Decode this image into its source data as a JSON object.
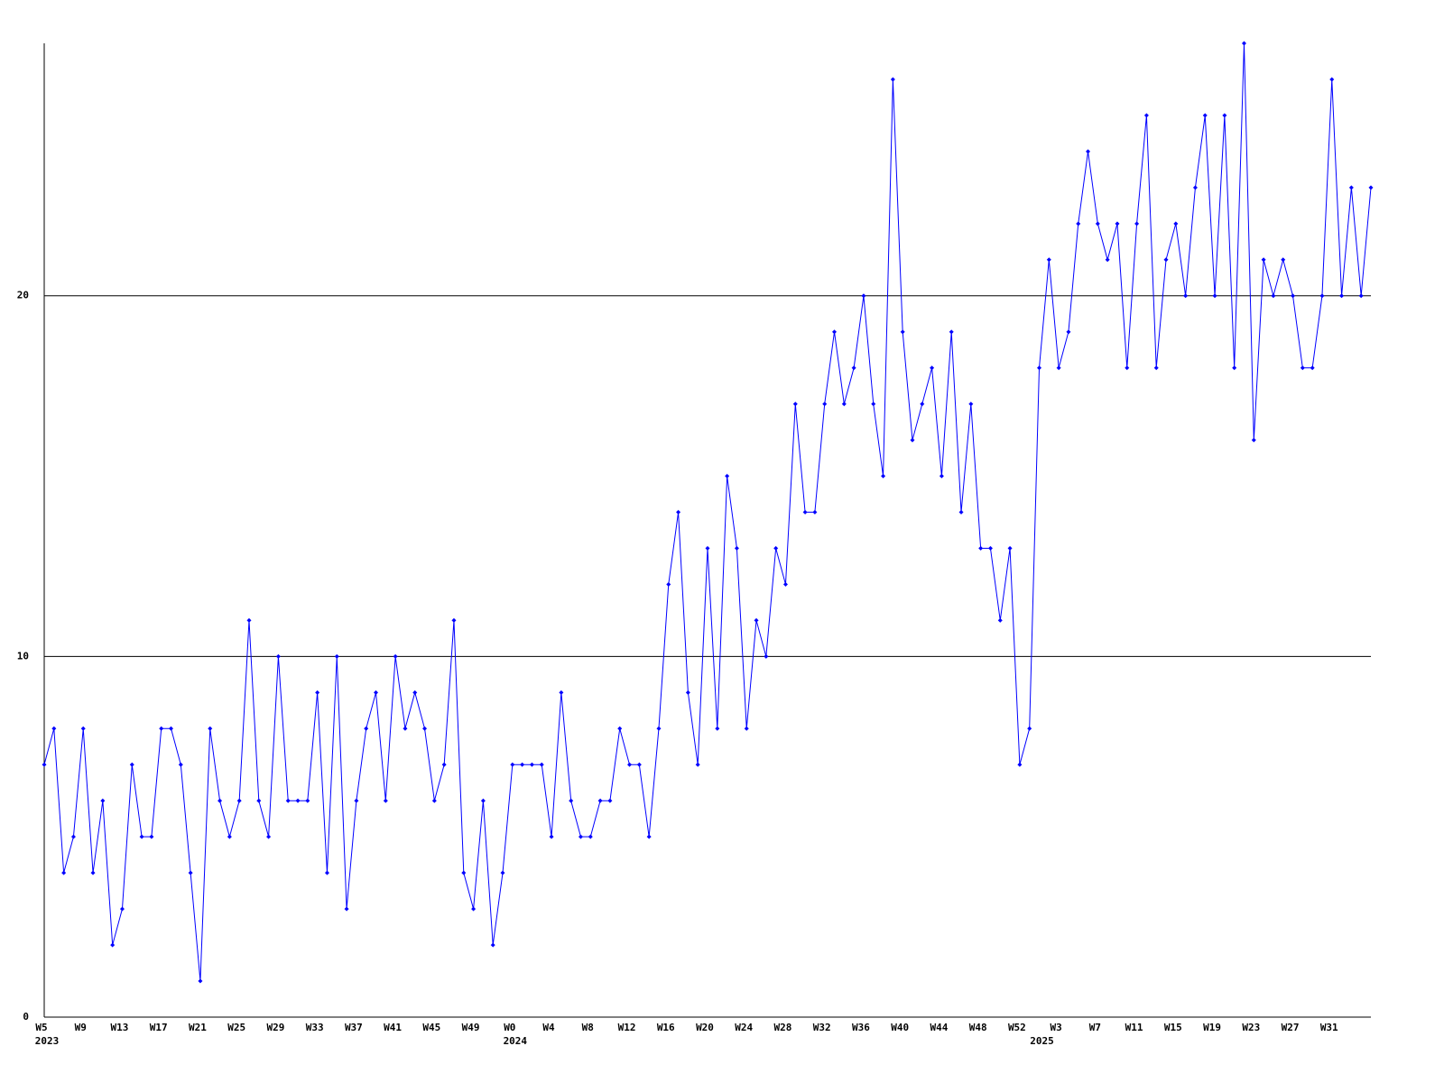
{
  "chart_data": {
    "type": "line",
    "categories": [
      "W5",
      null,
      null,
      null,
      "W9",
      null,
      null,
      null,
      "W13",
      null,
      null,
      null,
      "W17",
      null,
      null,
      null,
      "W21",
      null,
      null,
      null,
      "W25",
      null,
      null,
      null,
      "W29",
      null,
      null,
      null,
      "W33",
      null,
      null,
      null,
      "W37",
      null,
      null,
      null,
      "W41",
      null,
      null,
      null,
      "W45",
      null,
      null,
      null,
      "W49",
      null,
      null,
      null,
      "W0",
      null,
      null,
      null,
      "W4",
      null,
      null,
      null,
      "W8",
      null,
      null,
      null,
      "W12",
      null,
      null,
      null,
      "W16",
      null,
      null,
      null,
      "W20",
      null,
      null,
      null,
      "W24",
      null,
      null,
      null,
      "W28",
      null,
      null,
      null,
      "W32",
      null,
      null,
      null,
      "W36",
      null,
      null,
      null,
      "W40",
      null,
      null,
      null,
      "W44",
      null,
      null,
      null,
      "W48",
      null,
      null,
      null,
      "W52",
      null,
      null,
      null,
      "W3",
      null,
      null,
      null,
      "W7",
      null,
      null,
      null,
      "W11",
      null,
      null,
      null,
      "W15",
      null,
      null,
      null,
      "W19",
      null,
      null,
      null,
      "W23",
      null,
      null,
      null,
      "W27",
      null,
      null,
      null,
      "W31",
      null,
      null,
      null,
      null
    ],
    "category_years": [
      "2023",
      null,
      null,
      null,
      null,
      null,
      null,
      null,
      null,
      null,
      null,
      null,
      null,
      null,
      null,
      null,
      null,
      null,
      null,
      null,
      null,
      null,
      null,
      null,
      null,
      null,
      null,
      null,
      null,
      null,
      null,
      null,
      null,
      null,
      null,
      null,
      null,
      null,
      null,
      null,
      null,
      null,
      null,
      null,
      null,
      null,
      null,
      null,
      "2024",
      null,
      null,
      null,
      null,
      null,
      null,
      null,
      null,
      null,
      null,
      null,
      null,
      null,
      null,
      null,
      null,
      null,
      null,
      null,
      null,
      null,
      null,
      null,
      null,
      null,
      null,
      null,
      null,
      null,
      null,
      null,
      null,
      null,
      null,
      null,
      null,
      null,
      null,
      null,
      null,
      null,
      null,
      null,
      null,
      null,
      null,
      null,
      null,
      null,
      null,
      null,
      null,
      null,
      "2025",
      null,
      null,
      null,
      null,
      null,
      null,
      null,
      null,
      null,
      null,
      null,
      null,
      null,
      null,
      null,
      null,
      null,
      null,
      null,
      null,
      null,
      null,
      null,
      null,
      null,
      null,
      null,
      null,
      null,
      null,
      null,
      null,
      null,
      null
    ],
    "series": [
      {
        "color": "#0000ff",
        "values": [
          7,
          8,
          4,
          5,
          8,
          4,
          6,
          2,
          3,
          7,
          5,
          5,
          8,
          8,
          7,
          4,
          1,
          8,
          6,
          5,
          6,
          11,
          6,
          5,
          10,
          6,
          6,
          6,
          9,
          4,
          10,
          3,
          6,
          8,
          9,
          6,
          10,
          8,
          9,
          8,
          6,
          7,
          11,
          4,
          3,
          6,
          2,
          4,
          7,
          7,
          7,
          7,
          5,
          9,
          6,
          5,
          5,
          6,
          6,
          8,
          7,
          7,
          5,
          8,
          12,
          14,
          9,
          7,
          13,
          8,
          15,
          13,
          8,
          11,
          10,
          13,
          12,
          17,
          14,
          14,
          17,
          19,
          17,
          18,
          20,
          17,
          15,
          26,
          19,
          16,
          17,
          18,
          15,
          19,
          14,
          17,
          13,
          13,
          11,
          13,
          7,
          8,
          18,
          21,
          18,
          19,
          22,
          24,
          22,
          21,
          22,
          18,
          22,
          25,
          18,
          21,
          22,
          20,
          23,
          25,
          20,
          25,
          18,
          27,
          16,
          21,
          20,
          21,
          20,
          18,
          18,
          20,
          26,
          20,
          23,
          20,
          23
        ]
      }
    ],
    "ylim": [
      0,
      27
    ],
    "yticks": [
      0,
      10,
      20
    ],
    "grid": true
  }
}
